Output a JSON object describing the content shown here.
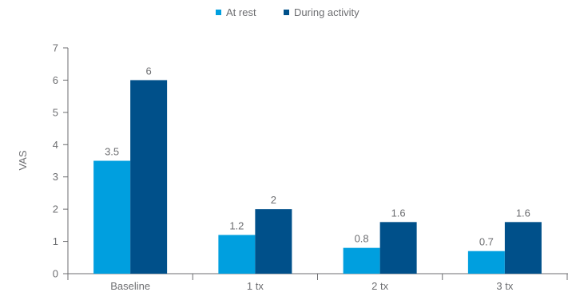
{
  "chart_data": {
    "type": "bar",
    "categories": [
      "Baseline",
      "1 tx",
      "2 tx",
      "3 tx"
    ],
    "series": [
      {
        "name": "At rest",
        "values": [
          3.5,
          1.2,
          0.8,
          0.7
        ],
        "labels": [
          "3.5",
          "1.2",
          "0.8",
          "0.7"
        ],
        "color": "#009fdf"
      },
      {
        "name": "During activity",
        "values": [
          6,
          2,
          1.6,
          1.6
        ],
        "labels": [
          "6",
          "2",
          "1.6",
          "1.6"
        ],
        "color": "#00508a"
      }
    ],
    "ylabel": "VAS",
    "xlabel": "",
    "ylim": [
      0,
      7
    ],
    "yticks": [
      "0",
      "1",
      "2",
      "3",
      "4",
      "5",
      "6",
      "7"
    ],
    "grid": false,
    "legend_position": "top-center",
    "colors": {
      "axis": "#6d6e71",
      "text": "#6d6e71"
    }
  }
}
